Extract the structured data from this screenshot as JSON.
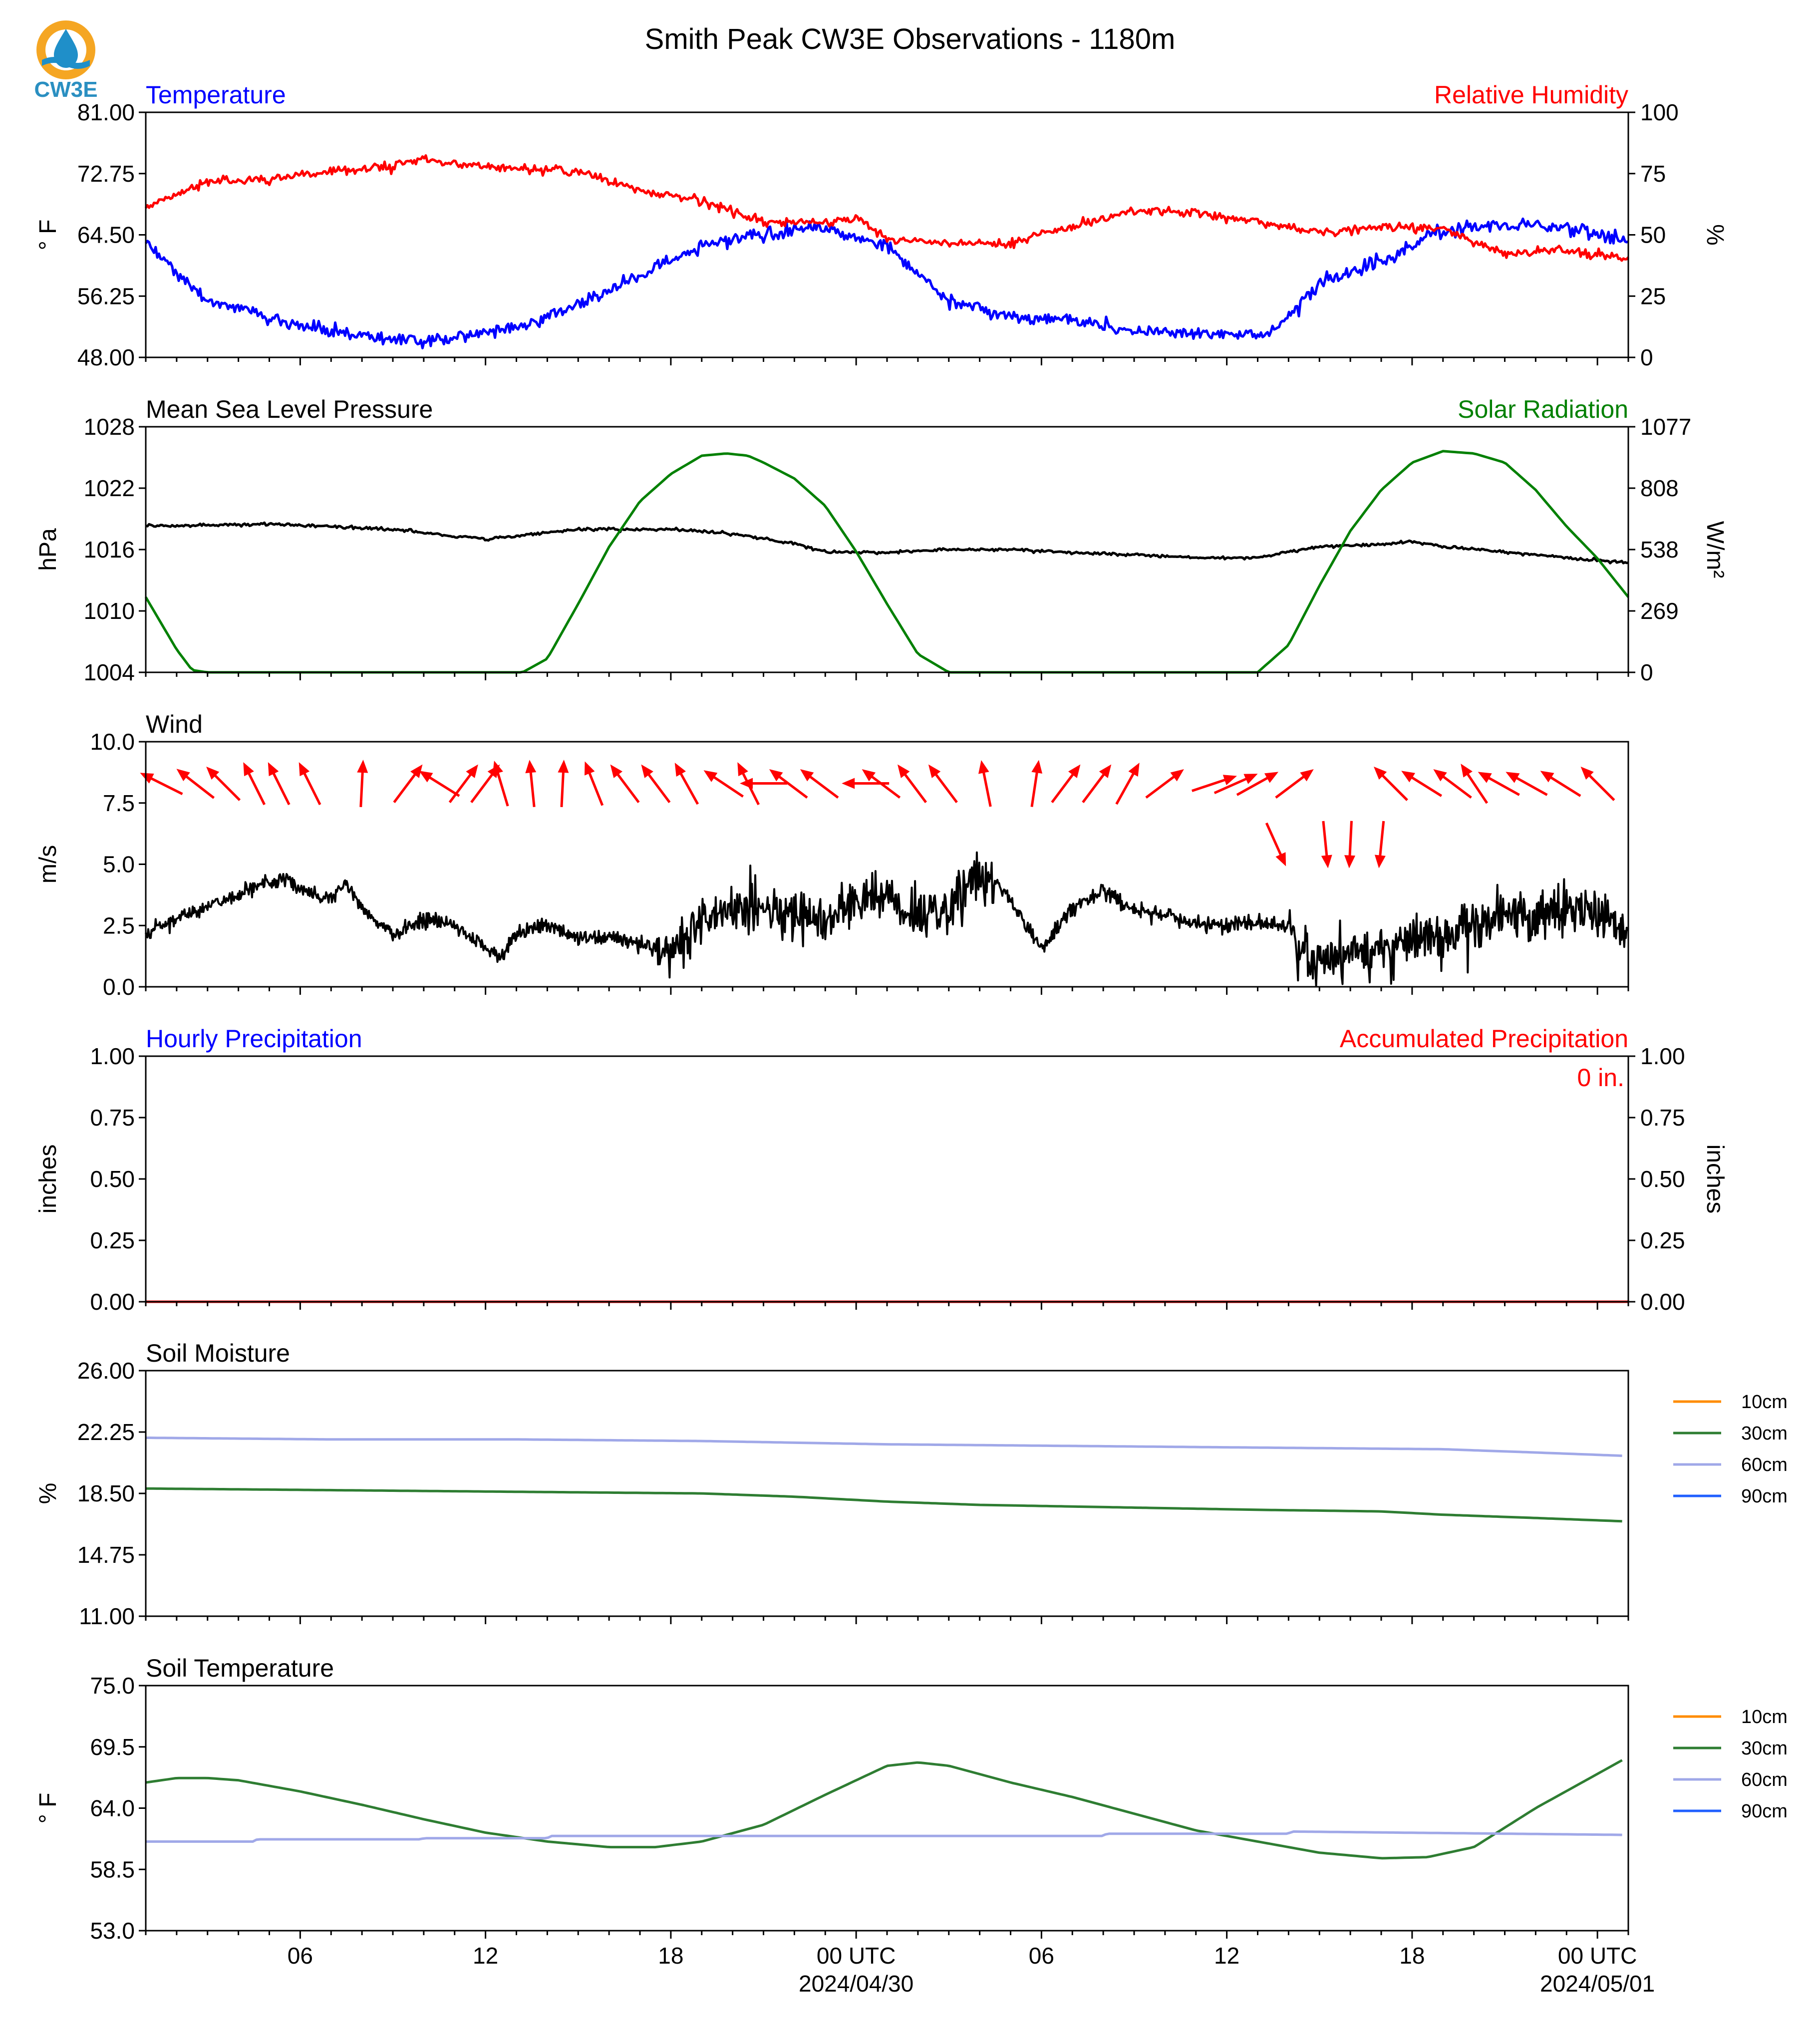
{
  "title": "Smith Peak CW3E Observations - 1180m",
  "logo": {
    "text": "CW3E",
    "colors": {
      "ring": "#f5a623",
      "drop": "#1f8fc9",
      "wave": "#1f8fc9",
      "text": "#2a8fc1"
    }
  },
  "x_axis": {
    "range_hours": [
      0,
      48
    ],
    "ticks": [
      {
        "hour": 5,
        "label": "06",
        "sublabel": ""
      },
      {
        "hour": 11,
        "label": "12",
        "sublabel": ""
      },
      {
        "hour": 17,
        "label": "18",
        "sublabel": ""
      },
      {
        "hour": 23,
        "label": "00 UTC",
        "sublabel": "2024/04/30"
      },
      {
        "hour": 29,
        "label": "06",
        "sublabel": ""
      },
      {
        "hour": 35,
        "label": "12",
        "sublabel": ""
      },
      {
        "hour": 41,
        "label": "18",
        "sublabel": ""
      },
      {
        "hour": 47,
        "label": "00 UTC",
        "sublabel": "2024/05/01"
      }
    ]
  },
  "chart_data": [
    {
      "id": "temp-rh",
      "type": "line",
      "title_left": "Temperature",
      "title_left_color": "#0000ff",
      "title_right": "Relative Humidity",
      "title_right_color": "#ff0000",
      "ylabel": "° F",
      "ylabel_right": "%",
      "ylim": [
        48,
        81
      ],
      "yticks": [
        "48.00",
        "56.25",
        "64.50",
        "72.75",
        "81.00"
      ],
      "ylim_right": [
        0,
        100
      ],
      "yticks_right": [
        "0",
        "25",
        "50",
        "75",
        "100"
      ],
      "series": [
        {
          "axis": "left",
          "color": "#0000ff",
          "x": [
            0,
            2,
            4,
            6,
            7,
            8,
            9,
            10,
            12,
            14,
            16,
            18,
            20,
            22,
            24,
            26,
            28,
            30,
            32,
            34,
            36,
            36.5,
            38,
            40,
            42,
            44,
            46,
            48
          ],
          "y": [
            63.5,
            55.5,
            53.5,
            51.5,
            51,
            50.5,
            50,
            50.8,
            52,
            55,
            59,
            63,
            64.5,
            65.5,
            63,
            55.5,
            53.5,
            53,
            51.5,
            51.5,
            50.8,
            51.5,
            58,
            61,
            65,
            66,
            65.5,
            63.5
          ]
        },
        {
          "axis": "right",
          "color": "#ff0000",
          "x": [
            0,
            2,
            4,
            6,
            8,
            9,
            10,
            12,
            14,
            16,
            18,
            20,
            22,
            23,
            24,
            26,
            28,
            29,
            30,
            32,
            34,
            36,
            38,
            40,
            42,
            43,
            44,
            46,
            48
          ],
          "y": [
            61,
            72,
            73,
            76,
            78,
            81,
            79,
            77,
            76,
            68,
            64,
            55,
            55,
            57,
            48,
            47,
            46,
            51,
            53,
            60,
            59,
            55,
            51,
            53,
            53,
            47,
            42,
            44,
            40
          ]
        }
      ]
    },
    {
      "id": "pressure-solar",
      "type": "line",
      "title_left": "Mean Sea Level Pressure",
      "title_left_color": "#000000",
      "title_right": "Solar Radiation",
      "title_right_color": "#008000",
      "ylabel": "hPa",
      "ylabel_right": "W/m²",
      "ylim": [
        1004,
        1028
      ],
      "yticks": [
        "1004",
        "1010",
        "1016",
        "1022",
        "1028"
      ],
      "ylim_right": [
        0,
        1077
      ],
      "yticks_right": [
        "0",
        "269",
        "538",
        "808",
        "1077"
      ],
      "series": [
        {
          "axis": "left",
          "color": "#000000",
          "x": [
            0,
            4,
            8,
            11,
            14,
            17,
            19,
            21,
            22,
            24,
            26,
            28,
            30,
            32,
            34,
            36,
            38,
            40,
            41,
            42,
            44,
            46,
            48
          ],
          "y": [
            1018.3,
            1018.5,
            1018.0,
            1017.0,
            1018.0,
            1018.0,
            1017.5,
            1016.6,
            1015.8,
            1015.7,
            1016.0,
            1016.0,
            1015.7,
            1015.5,
            1015.2,
            1015.2,
            1016.3,
            1016.5,
            1016.8,
            1016.3,
            1015.8,
            1015.2,
            1014.7
          ]
        },
        {
          "axis": "right",
          "color": "#008000",
          "x": [
            0,
            1,
            1.5,
            2,
            12.2,
            13,
            14,
            15,
            16,
            17,
            18,
            18.8,
            19.5,
            20,
            21,
            22,
            23,
            24,
            25,
            26,
            36,
            37,
            38,
            39,
            40,
            41,
            42,
            43,
            44,
            45,
            46,
            47,
            48
          ],
          "y": [
            330,
            100,
            10,
            0,
            0,
            60,
            300,
            550,
            750,
            870,
            950,
            960,
            950,
            920,
            850,
            730,
            530,
            300,
            80,
            0,
            0,
            120,
            380,
            620,
            800,
            920,
            970,
            960,
            920,
            800,
            640,
            500,
            330
          ]
        }
      ]
    },
    {
      "id": "wind",
      "type": "line",
      "title_left": "Wind",
      "title_left_color": "#000000",
      "ylabel": "m/s",
      "ylim": [
        0,
        10
      ],
      "yticks": [
        "0.0",
        "2.5",
        "5.0",
        "7.5",
        "10.0"
      ],
      "series": [
        {
          "axis": "left",
          "color": "#000000",
          "noise": 0.8,
          "x": [
            0,
            2,
            3,
            4,
            4.5,
            5,
            6,
            6.5,
            7,
            8,
            9,
            10,
            11,
            11.5,
            12,
            13,
            14,
            15,
            16,
            17,
            18,
            19,
            20,
            21,
            22,
            23,
            24,
            24.5,
            25,
            26,
            27,
            27.5,
            28,
            29,
            30,
            31,
            32,
            33,
            34,
            35,
            36,
            37,
            37.3,
            38,
            39,
            40,
            41,
            42,
            43,
            44,
            45,
            46,
            47,
            48
          ],
          "y": [
            2.2,
            3.3,
            3.8,
            4.3,
            4.5,
            4.0,
            3.6,
            4.2,
            3.2,
            2.1,
            2.8,
            2.4,
            1.6,
            1.2,
            2.2,
            2.5,
            2.0,
            2.0,
            1.8,
            1.3,
            2.7,
            3.0,
            3.3,
            2.9,
            2.6,
            3.5,
            3.7,
            3.2,
            3.0,
            3.3,
            4.5,
            4.3,
            3.5,
            1.6,
            3.2,
            3.9,
            3.1,
            2.9,
            2.6,
            2.6,
            2.6,
            2.4,
            1.6,
            0.8,
            1.4,
            1.6,
            1.9,
            2.1,
            2.6,
            2.9,
            3.0,
            3.1,
            2.9,
            2.4
          ]
        }
      ],
      "arrows": {
        "color": "#ff0000",
        "row_y": 8.3,
        "items": [
          {
            "x": 0.5,
            "u": -1,
            "v": 0.5
          },
          {
            "x": 1.6,
            "u": -0.9,
            "v": 0.7
          },
          {
            "x": 2.5,
            "u": -0.8,
            "v": 0.8
          },
          {
            "x": 3.5,
            "u": -0.5,
            "v": 1
          },
          {
            "x": 4.3,
            "u": -0.5,
            "v": 1
          },
          {
            "x": 5.3,
            "u": -0.5,
            "v": 1
          },
          {
            "x": 7.0,
            "u": 0.05,
            "v": 1
          },
          {
            "x": 8.5,
            "u": 0.6,
            "v": 0.8
          },
          {
            "x": 9.5,
            "u": -0.8,
            "v": 0.5
          },
          {
            "x": 10.3,
            "u": 0.6,
            "v": 0.8
          },
          {
            "x": 11.0,
            "u": 0.6,
            "v": 0.8
          },
          {
            "x": 11.5,
            "u": -0.3,
            "v": 1
          },
          {
            "x": 12.5,
            "u": -0.1,
            "v": 1
          },
          {
            "x": 13.5,
            "u": 0.05,
            "v": 1
          },
          {
            "x": 14.5,
            "u": -0.4,
            "v": 1
          },
          {
            "x": 15.5,
            "u": -0.6,
            "v": 0.8
          },
          {
            "x": 16.5,
            "u": -0.6,
            "v": 0.8
          },
          {
            "x": 17.5,
            "u": -0.5,
            "v": 0.9
          },
          {
            "x": 18.7,
            "u": -0.9,
            "v": 0.6
          },
          {
            "x": 19.5,
            "u": -0.5,
            "v": 1
          },
          {
            "x": 20.0,
            "u": -1,
            "v": 0
          },
          {
            "x": 20.8,
            "u": -0.8,
            "v": 0.6
          },
          {
            "x": 21.8,
            "u": -0.8,
            "v": 0.6
          },
          {
            "x": 23.3,
            "u": -1,
            "v": 0
          },
          {
            "x": 23.8,
            "u": -0.8,
            "v": 0.6
          },
          {
            "x": 24.8,
            "u": -0.6,
            "v": 0.8
          },
          {
            "x": 25.8,
            "u": -0.6,
            "v": 0.8
          },
          {
            "x": 27.2,
            "u": -0.2,
            "v": 1
          },
          {
            "x": 28.8,
            "u": 0.15,
            "v": 1
          },
          {
            "x": 29.8,
            "u": 0.6,
            "v": 0.8
          },
          {
            "x": 30.8,
            "u": 0.6,
            "v": 0.8
          },
          {
            "x": 31.8,
            "u": 0.5,
            "v": 0.9
          },
          {
            "x": 33.0,
            "u": 0.8,
            "v": 0.6
          },
          {
            "x": 34.6,
            "u": 0.9,
            "v": 0.3
          },
          {
            "x": 35.3,
            "u": 0.9,
            "v": 0.4
          },
          {
            "x": 36.0,
            "u": 0.9,
            "v": 0.5
          },
          {
            "x": 36.6,
            "u": 0.45,
            "v": -1,
            "dy": -2.5
          },
          {
            "x": 37.2,
            "u": 0.8,
            "v": 0.6
          },
          {
            "x": 38.2,
            "u": 0.1,
            "v": -1,
            "dy": -2.5
          },
          {
            "x": 39.0,
            "u": -0.05,
            "v": -1,
            "dy": -2.5
          },
          {
            "x": 40.0,
            "u": -0.1,
            "v": -1,
            "dy": -2.5
          },
          {
            "x": 40.3,
            "u": -0.7,
            "v": 0.7
          },
          {
            "x": 41.3,
            "u": -0.8,
            "v": 0.5
          },
          {
            "x": 42.3,
            "u": -0.8,
            "v": 0.6
          },
          {
            "x": 43.0,
            "u": -0.6,
            "v": 0.9
          },
          {
            "x": 43.8,
            "u": -0.9,
            "v": 0.5
          },
          {
            "x": 44.7,
            "u": -0.9,
            "v": 0.5
          },
          {
            "x": 45.8,
            "u": -0.8,
            "v": 0.5
          },
          {
            "x": 47.0,
            "u": -0.7,
            "v": 0.7
          }
        ]
      }
    },
    {
      "id": "precip",
      "type": "line",
      "title_left": "Hourly Precipitation",
      "title_left_color": "#0000ff",
      "title_right": "Accumulated Precipitation",
      "title_right_color": "#ff0000",
      "annotation": "0 in.",
      "annotation_color": "#ff0000",
      "ylabel": "inches",
      "ylabel_right": "inches",
      "ylim": [
        0,
        1
      ],
      "yticks": [
        "0.00",
        "0.25",
        "0.50",
        "0.75",
        "1.00"
      ],
      "ylim_right": [
        0,
        1
      ],
      "yticks_right": [
        "0.00",
        "0.25",
        "0.50",
        "0.75",
        "1.00"
      ],
      "series": [
        {
          "axis": "left",
          "color": "#0000ff",
          "x": [
            0,
            48
          ],
          "y": [
            0,
            0
          ]
        },
        {
          "axis": "right",
          "color": "#ff0000",
          "x": [
            0,
            48
          ],
          "y": [
            0,
            0
          ]
        }
      ]
    },
    {
      "id": "soil-moisture",
      "type": "line",
      "title_left": "Soil Moisture",
      "title_left_color": "#000000",
      "ylabel": "%",
      "ylim": [
        11,
        26
      ],
      "yticks": [
        "11.00",
        "14.75",
        "18.50",
        "22.25",
        "26.00"
      ],
      "legend": [
        "10cm",
        "30cm",
        "60cm",
        "90cm"
      ],
      "legend_colors": [
        "#ff8c00",
        "#2e7d32",
        "#a0a8e8",
        "#1f5fff"
      ],
      "series": [
        {
          "name": "30cm",
          "color": "#2e7d32",
          "x": [
            0,
            6,
            12,
            18,
            21,
            24,
            27,
            30,
            36,
            40,
            42,
            45,
            47.8
          ],
          "y": [
            18.8,
            18.7,
            18.6,
            18.5,
            18.3,
            18.0,
            17.8,
            17.7,
            17.5,
            17.4,
            17.2,
            17.0,
            16.8
          ]
        },
        {
          "name": "60cm",
          "color": "#a0a8e8",
          "x": [
            0,
            6,
            12,
            18,
            24,
            30,
            36,
            42,
            45,
            47.8
          ],
          "y": [
            21.9,
            21.8,
            21.8,
            21.7,
            21.5,
            21.4,
            21.3,
            21.2,
            21.0,
            20.8
          ]
        }
      ]
    },
    {
      "id": "soil-temp",
      "type": "line",
      "title_left": "Soil Temperature",
      "title_left_color": "#000000",
      "ylabel": "° F",
      "ylim": [
        53,
        75
      ],
      "yticks": [
        "53.0",
        "58.5",
        "64.0",
        "69.5",
        "75.0"
      ],
      "legend": [
        "10cm",
        "30cm",
        "60cm",
        "90cm"
      ],
      "legend_colors": [
        "#ff8c00",
        "#2e7d32",
        "#a0a8e8",
        "#1f5fff"
      ],
      "series": [
        {
          "name": "30cm",
          "color": "#2e7d32",
          "x": [
            0,
            1,
            2,
            3,
            5,
            7,
            9,
            11,
            13,
            15,
            16.5,
            18,
            20,
            22,
            24,
            25,
            26,
            28,
            30,
            32,
            34,
            36,
            38,
            40,
            41.5,
            43,
            45,
            47.8
          ],
          "y": [
            66.3,
            66.7,
            66.7,
            66.5,
            65.5,
            64.3,
            63.0,
            61.8,
            61.0,
            60.5,
            60.5,
            61.0,
            62.5,
            65.2,
            67.8,
            68.1,
            67.8,
            66.3,
            65.0,
            63.5,
            62.0,
            61.0,
            60.0,
            59.5,
            59.6,
            60.5,
            64.0,
            68.3
          ]
        },
        {
          "name": "60cm",
          "color": "#a0a8e8",
          "x": [
            0,
            3.5,
            3.6,
            8.9,
            9,
            13,
            13.1,
            31,
            31.1,
            37,
            37.1,
            47.8
          ],
          "y": [
            61.0,
            61.0,
            61.2,
            61.2,
            61.3,
            61.3,
            61.5,
            61.5,
            61.7,
            61.7,
            61.9,
            61.6
          ]
        }
      ]
    }
  ]
}
